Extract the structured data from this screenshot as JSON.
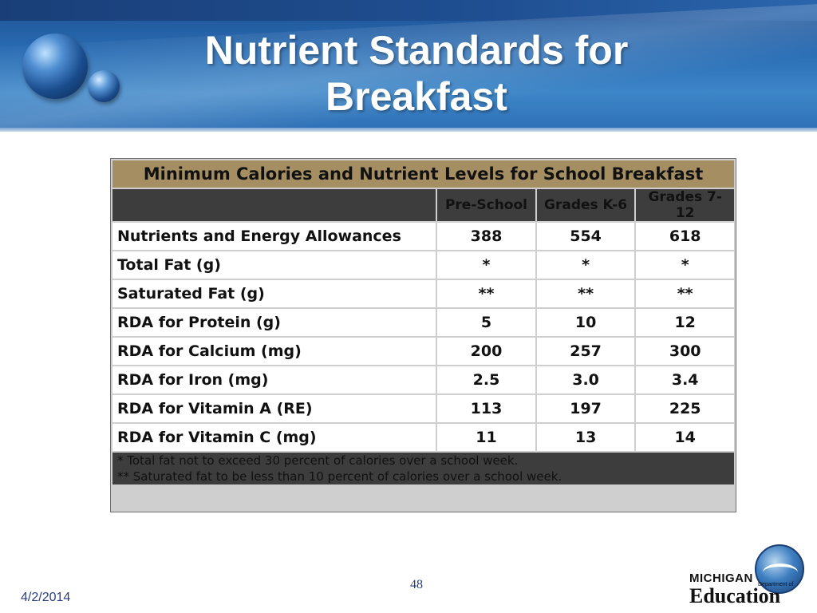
{
  "slide": {
    "title_line1": "Nutrient Standards for",
    "title_line2": "Breakfast",
    "date": "4/2/2014",
    "page_number": "48"
  },
  "table": {
    "caption": "Minimum Calories and Nutrient Levels for School Breakfast",
    "columns": [
      "Pre-School",
      "Grades K-6",
      "Grades 7-12"
    ],
    "rows": [
      {
        "label": "Nutrients and Energy Allowances",
        "values": [
          "388",
          "554",
          "618"
        ]
      },
      {
        "label": "Total Fat (g)",
        "values": [
          "*",
          "*",
          "*"
        ]
      },
      {
        "label": "Saturated Fat (g)",
        "values": [
          "**",
          "**",
          "**"
        ]
      },
      {
        "label": "RDA for Protein (g)",
        "values": [
          "5",
          "10",
          "12"
        ]
      },
      {
        "label": "RDA for Calcium (mg)",
        "values": [
          "200",
          "257",
          "300"
        ]
      },
      {
        "label": "RDA for Iron (mg)",
        "values": [
          "2.5",
          "3.0",
          "3.4"
        ]
      },
      {
        "label": "RDA for Vitamin A (RE)",
        "values": [
          "113",
          "197",
          "225"
        ]
      },
      {
        "label": "RDA for Vitamin C (mg)",
        "values": [
          "11",
          "13",
          "14"
        ]
      }
    ],
    "notes": [
      "* Total fat not to exceed 30 percent of calories over a school week.",
      "** Saturated fat to be less than 10 percent of calories over a school week."
    ]
  },
  "logo": {
    "line1": "MICHIGAN",
    "line2": "Department of",
    "line3": "Education"
  },
  "colors": {
    "header_blue": "#2a6db4",
    "caption_tan": "#a58f62",
    "column_header_bg": "#3d3d3d",
    "column_header_text": "#d4a94a"
  },
  "icons": [
    "globe-orb-icon",
    "michigan-education-logo"
  ]
}
